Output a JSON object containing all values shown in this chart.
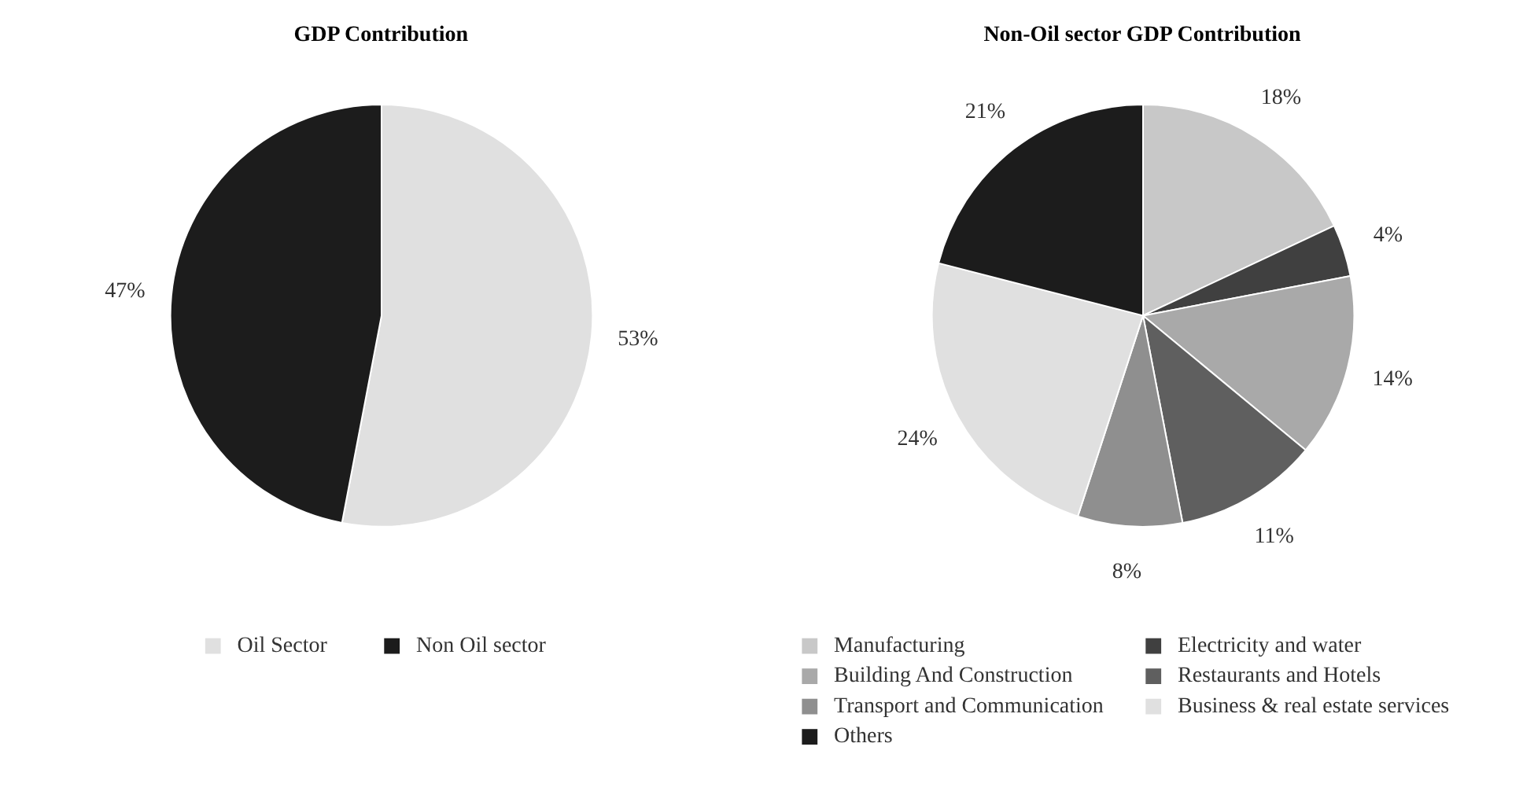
{
  "chart_data": [
    {
      "type": "pie",
      "title": "GDP Contribution",
      "categories": [
        "Oil Sector",
        "Non Oil sector"
      ],
      "values": [
        53,
        47
      ],
      "colors": [
        "#e0e0e0",
        "#1c1c1c"
      ],
      "value_labels": [
        "53%",
        "47%"
      ],
      "legend": "bottom"
    },
    {
      "type": "pie",
      "title": "Non-Oil sector GDP Contribution",
      "categories": [
        "Manufacturing",
        "Electricity and water",
        "Building And Construction",
        "Restaurants and Hotels",
        "Transport and Communication",
        "Business & real estate services",
        "Others"
      ],
      "values": [
        18,
        4,
        14,
        11,
        8,
        24,
        21
      ],
      "colors": [
        "#c8c8c8",
        "#404040",
        "#a9a9a9",
        "#5f5f5f",
        "#8f8f8f",
        "#e0e0e0",
        "#1c1c1c"
      ],
      "value_labels": [
        "18%",
        "4%",
        "14%",
        "11%",
        "8%",
        "24%",
        "21%"
      ],
      "legend": "bottom"
    }
  ]
}
